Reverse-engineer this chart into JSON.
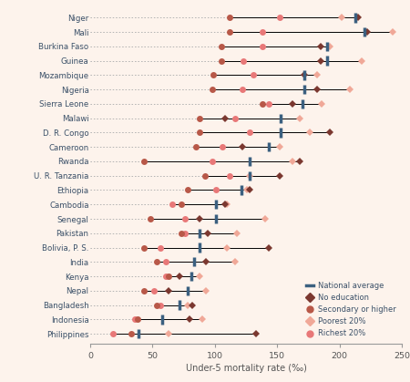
{
  "countries": [
    "Niger",
    "Mali",
    "Burkina Faso",
    "Guinea",
    "Mozambique",
    "Nigeria",
    "Sierra Leone",
    "Malawi",
    "D. R. Congo",
    "Cameroon",
    "Rwanda",
    "U. R. Tanzania",
    "Ethiopia",
    "Cambodia",
    "Senegal",
    "Pakistan",
    "Bolivia, P. S.",
    "India",
    "Kenya",
    "Nepal",
    "Bangladesh",
    "Indonesia",
    "Philippines"
  ],
  "no_education": [
    215,
    222,
    185,
    185,
    172,
    182,
    162,
    108,
    192,
    122,
    168,
    152,
    128,
    108,
    88,
    94,
    143,
    93,
    72,
    63,
    82,
    80,
    133
  ],
  "secondary_higher": [
    112,
    112,
    105,
    105,
    99,
    98,
    138,
    88,
    88,
    85,
    43,
    92,
    78,
    73,
    48,
    73,
    43,
    53,
    63,
    43,
    53,
    38,
    33
  ],
  "poorest_20": [
    202,
    243,
    192,
    218,
    182,
    208,
    186,
    168,
    176,
    152,
    162,
    128,
    126,
    110,
    140,
    118,
    110,
    116,
    88,
    93,
    78,
    90,
    63
  ],
  "richest_20": [
    152,
    138,
    138,
    123,
    131,
    122,
    143,
    116,
    128,
    106,
    98,
    112,
    101,
    66,
    76,
    76,
    56,
    61,
    61,
    51,
    56,
    36,
    18
  ],
  "national_avg": [
    213,
    220,
    190,
    190,
    172,
    172,
    170,
    153,
    153,
    143,
    128,
    128,
    121,
    101,
    101,
    88,
    88,
    83,
    81,
    78,
    72,
    58,
    39
  ],
  "bg_color": "#fdf3ec",
  "color_no_edu": "#7b3830",
  "color_sec": "#b85848",
  "color_poorest": "#f0a898",
  "color_richest": "#e87878",
  "color_national": "#3b6080",
  "label_color": "#3a5068",
  "xlabel": "Under-5 mortality rate (‰)",
  "xlim": [
    0,
    250
  ],
  "xticks": [
    0,
    50,
    100,
    150,
    200,
    250
  ],
  "legend_labels": [
    "National average",
    "No education",
    "Secondary or higher",
    "Poorest 20%",
    "Richest 20%"
  ]
}
